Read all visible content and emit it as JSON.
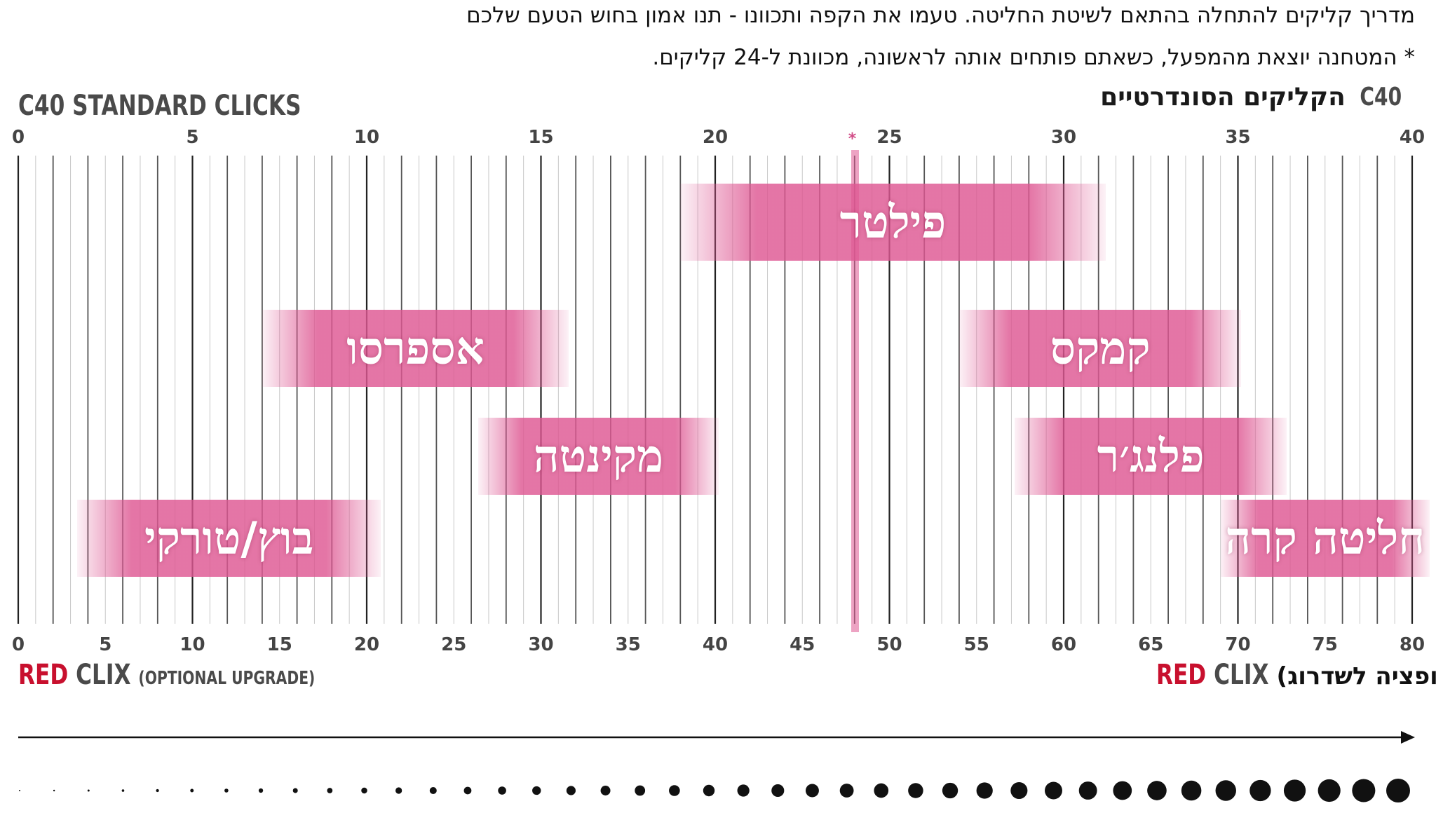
{
  "intro": {
    "line1": "מדריך קליקים להתחלה בהתאם לשיטת החליטה. טעמו את הקפה ותכוונו - תנו אמון בחוש הטעם שלכם",
    "line2": "* המטחנה יוצאת מהמפעל, כשאתם פותחים אותה לראשונה, מכוונת ל-24 קליקים."
  },
  "header": {
    "title_en": "C40 STANDARD CLICKS",
    "title_he_prefix": "C40",
    "title_he_text": "הקליקים הסונדרטיים"
  },
  "top_axis": {
    "ticks": [
      "0",
      "5",
      "10",
      "15",
      "20",
      "25",
      "30",
      "35",
      "40"
    ],
    "range": [
      0,
      40
    ],
    "factory_marker_value": 24,
    "factory_marker_symbol": "*"
  },
  "bottom_axis": {
    "ticks": [
      "0",
      "5",
      "10",
      "15",
      "20",
      "25",
      "30",
      "35",
      "40",
      "45",
      "50",
      "55",
      "60",
      "65",
      "70",
      "75",
      "80"
    ],
    "range": [
      0,
      80
    ]
  },
  "methods": [
    {
      "label": "פילטר",
      "from": 19,
      "to": 31.2,
      "row": 0
    },
    {
      "label": "אספרסו",
      "from": 7,
      "to": 15.8,
      "row": 1
    },
    {
      "label": "קמקס",
      "from": 27,
      "to": 35.1,
      "row": 1
    },
    {
      "label": "מקינטה",
      "from": 13.2,
      "to": 20.1,
      "row": 2
    },
    {
      "label": "פלנג׳ר",
      "from": 28.6,
      "to": 36.4,
      "row": 2
    },
    {
      "label": "בוץ/טורקי",
      "from": 1.7,
      "to": 10.4,
      "row": 3
    },
    {
      "label": "חליטה קרה",
      "from": 34.5,
      "to": 40.5,
      "row": 3
    }
  ],
  "red_clix": {
    "left_red": "RED",
    "left_gray": "CLIX",
    "left_optional": "(OPTIONAL UPGRADE)",
    "right_red": "RED",
    "right_gray": "CLIX",
    "right_optional": "(אופציה לשדרוג)"
  },
  "colors": {
    "band": "#de5792",
    "red": "#c8102e",
    "marker": "#d14b86"
  }
}
